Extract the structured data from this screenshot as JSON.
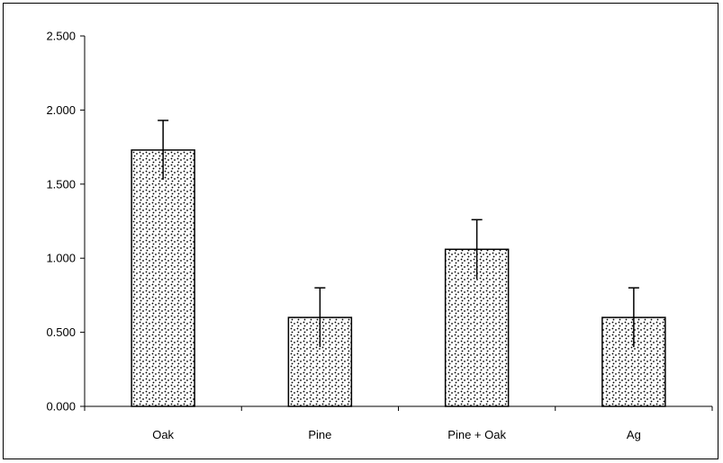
{
  "chart_data": {
    "type": "bar",
    "title": "",
    "xlabel": "",
    "ylabel": "",
    "categories": [
      "Oak",
      "Pine",
      "Pine + Oak",
      "Ag"
    ],
    "values": [
      1.73,
      0.6,
      1.06,
      0.6
    ],
    "error_bars": [
      0.2,
      0.2,
      0.2,
      0.2
    ],
    "ylim": [
      0,
      2.5
    ],
    "yticks": [
      0,
      0.5,
      1,
      1.5,
      2,
      2.5
    ],
    "ytick_labels": [
      "0.000",
      "0.500",
      "1.000",
      "1.500",
      "2.000",
      "2.500"
    ],
    "grid": false,
    "legend": "none",
    "bar_pattern": "stippled",
    "colors": {
      "bar_fill": "#ffffff",
      "bar_dots": "#000000",
      "axis": "#000000"
    }
  }
}
